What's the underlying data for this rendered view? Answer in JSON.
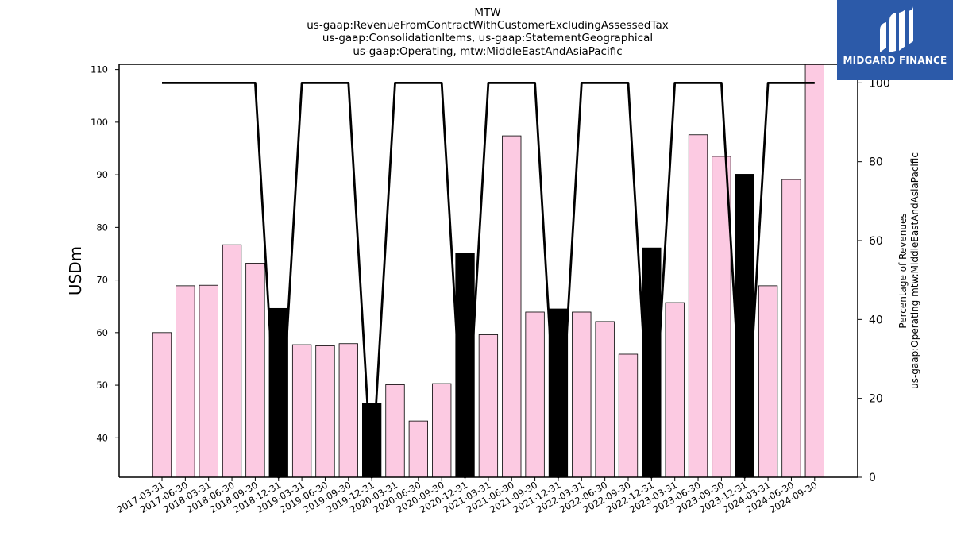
{
  "title_lines": [
    "MTW",
    "us-gaap:RevenueFromContractWithCustomerExcludingAssessedTax",
    "us-gaap:ConsolidationItems, us-gaap:StatementGeographical",
    "us-gaap:Operating, mtw:MiddleEastAndAsiaPacific"
  ],
  "logo": {
    "text": "MIDGARD FINANCE",
    "background": "#2c5aa9"
  },
  "chart_data": {
    "type": "bar",
    "categories": [
      "2017-03-31",
      "2017-06-30",
      "2018-03-31",
      "2018-06-30",
      "2018-09-30",
      "2018-12-31",
      "2019-03-31",
      "2019-06-30",
      "2019-09-30",
      "2019-12-31",
      "2020-03-31",
      "2020-06-30",
      "2020-09-30",
      "2020-12-31",
      "2021-03-31",
      "2021-06-30",
      "2021-09-30",
      "2021-12-31",
      "2022-03-31",
      "2022-06-30",
      "2022-09-30",
      "2022-12-31",
      "2023-03-31",
      "2023-06-30",
      "2023-09-30",
      "2023-12-31",
      "2024-03-31",
      "2024-06-30",
      "2024-09-30"
    ],
    "series": [
      {
        "values": [
          60.0,
          68.9,
          69.0,
          76.7,
          73.2,
          64.6,
          57.7,
          57.5,
          57.9,
          46.5,
          50.1,
          43.2,
          50.3,
          75.1,
          59.6,
          97.4,
          63.9,
          64.5,
          63.9,
          62.1,
          55.9,
          76.1,
          65.7,
          97.6,
          93.5,
          90.1,
          68.9,
          89.1,
          111.0
        ],
        "colors": [
          "#fccae2",
          "#fccae2",
          "#fccae2",
          "#fccae2",
          "#fccae2",
          "#000000",
          "#fccae2",
          "#fccae2",
          "#fccae2",
          "#000000",
          "#fccae2",
          "#fccae2",
          "#fccae2",
          "#000000",
          "#fccae2",
          "#fccae2",
          "#fccae2",
          "#000000",
          "#fccae2",
          "#fccae2",
          "#fccae2",
          "#000000",
          "#fccae2",
          "#fccae2",
          "#fccae2",
          "#000000",
          "#fccae2",
          "#fccae2",
          "#fccae2"
        ]
      },
      {
        "type": "line",
        "axis": "right",
        "values": [
          100,
          100,
          100,
          100,
          100,
          0,
          100,
          100,
          100,
          0,
          100,
          100,
          100,
          0,
          100,
          100,
          100,
          0,
          100,
          100,
          100,
          0,
          100,
          100,
          100,
          0,
          100,
          100,
          100
        ]
      }
    ],
    "ylabel": "USDm",
    "ylabel_right_lines": [
      "Percentage of Revenues",
      "us-gaap:Operating mtw:MiddleEastAndAsiaPacific"
    ],
    "ylim": [
      32.5,
      111
    ],
    "ylim_right": [
      0,
      104.7
    ],
    "yticks": [
      40,
      50,
      60,
      70,
      80,
      90,
      100,
      110
    ],
    "yticks_right": [
      0,
      20,
      40,
      60,
      80,
      100
    ],
    "colors": {
      "bar": "#fccae2",
      "bar_highlight": "#000000",
      "line": "#000000"
    },
    "grid": false
  }
}
